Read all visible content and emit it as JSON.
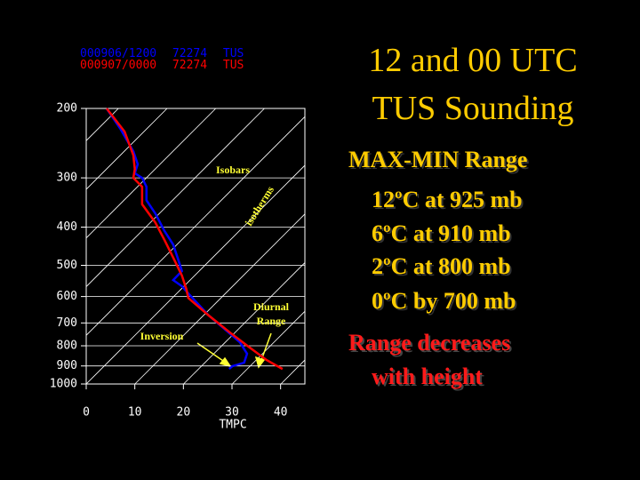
{
  "chart_data": {
    "type": "line",
    "xlabel": "TMPC",
    "xlim": [
      0,
      45
    ],
    "xticks": [
      0,
      10,
      20,
      30,
      40
    ],
    "ylim": [
      1000,
      200
    ],
    "yticks": [
      200,
      300,
      400,
      500,
      600,
      700,
      800,
      900,
      1000
    ],
    "yscale": "log",
    "series": [
      {
        "name": "000906/1200 72274 TUS",
        "color": "#0000ff",
        "x": [
          4.2,
          7.0,
          9.7,
          10.6,
          10.0,
          11.5,
          12.4,
          12.4,
          14.2,
          16.1,
          17.9,
          18.8,
          19.7,
          17.9,
          19.7,
          21.0,
          25.2,
          28.9,
          31.6,
          33.1,
          32.5,
          30.1,
          29.4
        ],
        "y": [
          200,
          225,
          257,
          277,
          292,
          300,
          316,
          342,
          369,
          409,
          443,
          478,
          517,
          545,
          565,
          589,
          670,
          733,
          783,
          838,
          883,
          901,
          916
        ]
      },
      {
        "name": "000907/0000 72274 TUS",
        "color": "#ff0000",
        "x": [
          4.2,
          7.9,
          9.7,
          10.0,
          9.7,
          11.5,
          11.5,
          14.2,
          16.1,
          17.9,
          19.7,
          20.6,
          21.0,
          25.2,
          29.8,
          33.4,
          37.1,
          40.4
        ],
        "y": [
          200,
          229,
          263,
          285,
          300,
          316,
          350,
          389,
          431,
          478,
          531,
          574,
          605,
          670,
          744,
          804,
          869,
          916
        ]
      }
    ],
    "annotations": [
      "Isobars",
      "isotherms",
      "Diurnal Range",
      "Inversion"
    ]
  },
  "slide": {
    "title": [
      "12 and 00 UTC",
      "TUS Sounding"
    ],
    "heading": "MAX-MIN Range",
    "items": [
      "12ºC at 925 mb",
      "6ºC at 910 mb",
      "2ºC at 800 mb",
      "0ºC by 700 mb"
    ],
    "conclusion": [
      "Range decreases",
      "with height"
    ]
  }
}
